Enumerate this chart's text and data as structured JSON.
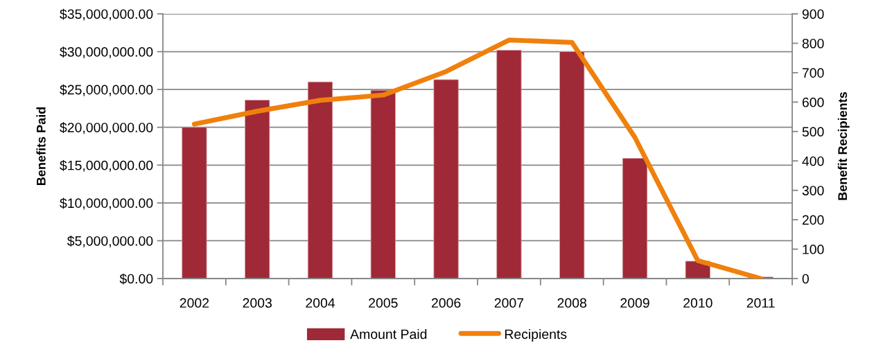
{
  "chart_data": {
    "type": "bar",
    "categories": [
      "2002",
      "2003",
      "2004",
      "2005",
      "2006",
      "2007",
      "2008",
      "2009",
      "2010",
      "2011"
    ],
    "series": [
      {
        "name": "Amount Paid",
        "color": "#9f2936",
        "values": [
          20000000,
          23600000,
          26000000,
          24900000,
          26300000,
          30200000,
          30000000,
          15900000,
          2300000,
          200000
        ]
      },
      {
        "name": "Recipients",
        "type": "line",
        "axis": "y2",
        "color": "#f0800c",
        "values": [
          525,
          569,
          606,
          624,
          704,
          811,
          803,
          480,
          61,
          0
        ]
      }
    ],
    "ylabel": "Benefits Paid",
    "y2label": "Benefit Recipients",
    "ylim": [
      0,
      35000000
    ],
    "yticks": [
      {
        "value": 0,
        "label": "$0.00"
      },
      {
        "value": 5000000,
        "label": "$5,000,000.00"
      },
      {
        "value": 10000000,
        "label": "$10,000,000.00"
      },
      {
        "value": 15000000,
        "label": "$15,000,000.00"
      },
      {
        "value": 20000000,
        "label": "$20,000,000.00"
      },
      {
        "value": 25000000,
        "label": "$25,000,000.00"
      },
      {
        "value": 30000000,
        "label": "$30,000,000.00"
      },
      {
        "value": 35000000,
        "label": "$35,000,000.00"
      }
    ],
    "y2lim": [
      0,
      900
    ],
    "y2ticks": [
      0,
      100,
      200,
      300,
      400,
      500,
      600,
      700,
      800,
      900
    ],
    "grid": "y",
    "legend": "bottom"
  }
}
